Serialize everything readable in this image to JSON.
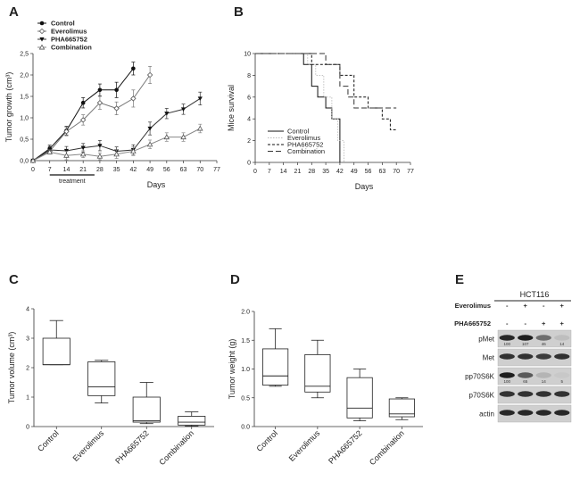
{
  "panels": {
    "A": {
      "letter": "A"
    },
    "B": {
      "letter": "B"
    },
    "C": {
      "letter": "C"
    },
    "D": {
      "letter": "D"
    },
    "E": {
      "letter": "E"
    }
  },
  "chart_data": [
    {
      "id": "A",
      "type": "line",
      "title": "",
      "xlabel": "Days",
      "ylabel": "Tumor growth (cm³)",
      "xlim": [
        0,
        77
      ],
      "ylim": [
        0,
        2.5
      ],
      "xticks": [
        0,
        7,
        14,
        21,
        28,
        35,
        42,
        49,
        56,
        63,
        70,
        77
      ],
      "yticks": [
        "0,0",
        "0,5",
        "1,0",
        "1,5",
        "2,0",
        "2,5"
      ],
      "annotation": "treatment",
      "treatment_range": [
        7,
        28
      ],
      "series": [
        {
          "name": "Control",
          "marker": "filled-circle",
          "x": [
            0,
            7,
            14,
            21,
            28,
            35,
            42
          ],
          "y": [
            0,
            0.28,
            0.7,
            1.35,
            1.65,
            1.65,
            2.15
          ],
          "err": [
            0,
            0.08,
            0.1,
            0.12,
            0.14,
            0.18,
            0.15
          ]
        },
        {
          "name": "Everolimus",
          "marker": "open-diamond",
          "x": [
            0,
            7,
            14,
            21,
            28,
            35,
            42,
            49
          ],
          "y": [
            0,
            0.22,
            0.68,
            0.95,
            1.35,
            1.22,
            1.45,
            2.0
          ],
          "err": [
            0,
            0.06,
            0.1,
            0.12,
            0.15,
            0.15,
            0.2,
            0.2
          ]
        },
        {
          "name": "PHA665752",
          "marker": "filled-triangle-down",
          "x": [
            0,
            7,
            14,
            21,
            28,
            35,
            42,
            49,
            56,
            63,
            70
          ],
          "y": [
            0,
            0.25,
            0.23,
            0.3,
            0.35,
            0.22,
            0.25,
            0.75,
            1.1,
            1.2,
            1.45
          ],
          "err": [
            0,
            0.08,
            0.1,
            0.1,
            0.12,
            0.1,
            0.12,
            0.15,
            0.12,
            0.12,
            0.15
          ]
        },
        {
          "name": "Combination",
          "marker": "open-triangle-up",
          "x": [
            0,
            7,
            14,
            21,
            28,
            35,
            42,
            49,
            56,
            63,
            70
          ],
          "y": [
            0,
            0.2,
            0.12,
            0.15,
            0.1,
            0.15,
            0.22,
            0.38,
            0.55,
            0.55,
            0.75
          ],
          "err": [
            0,
            0.05,
            0.1,
            0.08,
            0.08,
            0.1,
            0.1,
            0.1,
            0.1,
            0.1,
            0.1
          ]
        }
      ]
    },
    {
      "id": "B",
      "type": "line",
      "title": "",
      "xlabel": "Days",
      "ylabel": "Mice survival",
      "xlim": [
        0,
        77
      ],
      "ylim": [
        0,
        10
      ],
      "xticks": [
        0,
        7,
        14,
        21,
        28,
        35,
        42,
        49,
        56,
        63,
        70,
        77
      ],
      "yticks": [
        0,
        2,
        4,
        6,
        8,
        10
      ],
      "series": [
        {
          "name": "Control",
          "style": "solid",
          "steps": [
            [
              0,
              10
            ],
            [
              24,
              10
            ],
            [
              24,
              9
            ],
            [
              28,
              9
            ],
            [
              28,
              7
            ],
            [
              31,
              7
            ],
            [
              31,
              6
            ],
            [
              35,
              6
            ],
            [
              35,
              5
            ],
            [
              38,
              5
            ],
            [
              38,
              4
            ],
            [
              42,
              4
            ],
            [
              42,
              0
            ]
          ]
        },
        {
          "name": "Everolimus",
          "style": "dotted-light",
          "steps": [
            [
              0,
              10
            ],
            [
              26,
              10
            ],
            [
              26,
              9
            ],
            [
              30,
              9
            ],
            [
              30,
              8
            ],
            [
              34,
              8
            ],
            [
              34,
              6
            ],
            [
              38,
              6
            ],
            [
              38,
              4
            ],
            [
              41,
              4
            ],
            [
              41,
              2
            ],
            [
              44,
              2
            ],
            [
              44,
              0
            ]
          ]
        },
        {
          "name": "PHA665752",
          "style": "short-dash",
          "steps": [
            [
              0,
              10
            ],
            [
              28,
              10
            ],
            [
              28,
              9
            ],
            [
              42,
              9
            ],
            [
              42,
              8
            ],
            [
              49,
              8
            ],
            [
              49,
              6
            ],
            [
              56,
              6
            ],
            [
              56,
              5
            ],
            [
              63,
              5
            ],
            [
              63,
              4
            ],
            [
              67,
              4
            ],
            [
              67,
              3
            ],
            [
              70,
              3
            ]
          ]
        },
        {
          "name": "Combination",
          "style": "long-dash",
          "steps": [
            [
              0,
              10
            ],
            [
              35,
              10
            ],
            [
              35,
              9
            ],
            [
              42,
              9
            ],
            [
              42,
              7
            ],
            [
              46,
              7
            ],
            [
              46,
              6
            ],
            [
              49,
              6
            ],
            [
              49,
              5
            ],
            [
              56,
              5
            ],
            [
              70,
              5
            ]
          ]
        }
      ]
    },
    {
      "id": "C",
      "type": "box",
      "title": "",
      "xlabel": "",
      "ylabel": "Tumor volume (cm³)",
      "ylim": [
        0,
        4
      ],
      "yticks": [
        0,
        1,
        2,
        3,
        4
      ],
      "categories": [
        "Control",
        "Everolimus",
        "PHA665752",
        "Combination"
      ],
      "boxes": [
        {
          "min": 2.1,
          "q1": 2.1,
          "median": 2.1,
          "q3": 3.0,
          "max": 3.6
        },
        {
          "min": 0.8,
          "q1": 1.05,
          "median": 1.35,
          "q3": 2.2,
          "max": 2.25
        },
        {
          "min": 0.1,
          "q1": 0.15,
          "median": 0.2,
          "q3": 1.0,
          "max": 1.5
        },
        {
          "min": 0.02,
          "q1": 0.05,
          "median": 0.15,
          "q3": 0.35,
          "max": 0.5
        }
      ]
    },
    {
      "id": "D",
      "type": "box",
      "title": "",
      "xlabel": "",
      "ylabel": "Tumor  weight (g)",
      "ylim": [
        0,
        2.0
      ],
      "yticks": [
        "0.0",
        "0.5",
        "1.0",
        "1.5",
        "2.0"
      ],
      "categories": [
        "Control",
        "Everolimus",
        "PHA665752",
        "Combination"
      ],
      "boxes": [
        {
          "min": 0.7,
          "q1": 0.72,
          "median": 0.88,
          "q3": 1.35,
          "max": 1.7
        },
        {
          "min": 0.5,
          "q1": 0.6,
          "median": 0.7,
          "q3": 1.25,
          "max": 1.5
        },
        {
          "min": 0.1,
          "q1": 0.15,
          "median": 0.32,
          "q3": 0.85,
          "max": 1.0
        },
        {
          "min": 0.12,
          "q1": 0.17,
          "median": 0.22,
          "q3": 0.48,
          "max": 0.5
        }
      ]
    }
  ],
  "blot": {
    "cell_line": "HCT116",
    "treatments": [
      {
        "name": "Everolimus",
        "signs": [
          "-",
          "+",
          "-",
          "+"
        ]
      },
      {
        "name": "PHA665752",
        "signs": [
          "-",
          "-",
          "+",
          "+"
        ]
      }
    ],
    "rows": [
      {
        "label": "pMet",
        "intensity": [
          0.85,
          0.9,
          0.5,
          0.1
        ],
        "quant": [
          "100",
          "107",
          "46",
          "14"
        ]
      },
      {
        "label": "Met",
        "intensity": [
          0.8,
          0.8,
          0.75,
          0.8
        ],
        "quant": []
      },
      {
        "label": "pp70S6K",
        "intensity": [
          0.9,
          0.6,
          0.15,
          0.05
        ],
        "quant": [
          "100",
          "65",
          "14",
          "5"
        ]
      },
      {
        "label": "p70S6K",
        "intensity": [
          0.8,
          0.8,
          0.8,
          0.8
        ],
        "quant": []
      },
      {
        "label": "actin",
        "intensity": [
          0.85,
          0.85,
          0.85,
          0.85
        ],
        "quant": []
      }
    ]
  }
}
